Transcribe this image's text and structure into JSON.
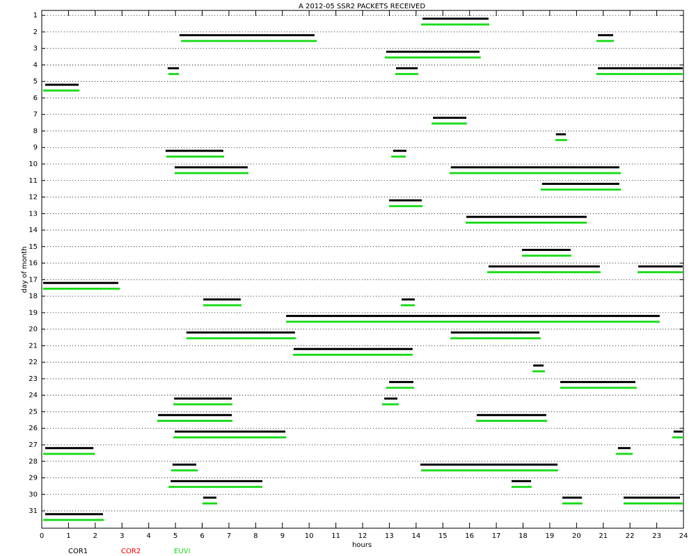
{
  "chart_data": {
    "type": "timeline",
    "title": "A  2012-05 SSR2 PACKETS RECEIVED",
    "x_label": "hours",
    "y_label": "day of month",
    "xlim": [
      0,
      24
    ],
    "xticks": [
      0,
      1,
      2,
      3,
      4,
      5,
      6,
      7,
      8,
      9,
      10,
      11,
      12,
      13,
      14,
      15,
      16,
      17,
      18,
      19,
      20,
      21,
      22,
      23,
      24
    ],
    "ylim": [
      0.7,
      32.05
    ],
    "yticks": [
      1,
      2,
      3,
      4,
      5,
      6,
      7,
      8,
      9,
      10,
      11,
      12,
      13,
      14,
      15,
      16,
      17,
      18,
      19,
      20,
      21,
      22,
      23,
      24,
      25,
      26,
      27,
      28,
      29,
      30,
      31
    ],
    "grid": true,
    "series": [
      {
        "name": "COR1",
        "color": "#000000",
        "segments": [
          [
            1,
            14.24,
            16.71
          ],
          [
            2,
            5.15,
            10.2
          ],
          [
            2,
            20.8,
            21.37
          ],
          [
            3,
            12.88,
            16.37
          ],
          [
            4,
            4.71,
            5.13
          ],
          [
            4,
            13.25,
            14.06
          ],
          [
            4,
            20.8,
            23.97
          ],
          [
            5,
            0.13,
            1.38
          ],
          [
            7,
            14.63,
            15.88
          ],
          [
            8,
            19.23,
            19.6
          ],
          [
            9,
            4.63,
            6.79
          ],
          [
            9,
            13.14,
            13.64
          ],
          [
            10,
            4.97,
            7.7
          ],
          [
            10,
            15.3,
            21.6
          ],
          [
            11,
            18.71,
            21.6
          ],
          [
            12,
            12.99,
            14.21
          ],
          [
            13,
            15.88,
            20.38
          ],
          [
            15,
            17.96,
            19.78
          ],
          [
            16,
            16.71,
            20.87
          ],
          [
            16,
            22.31,
            23.97
          ],
          [
            17,
            0.05,
            2.86
          ],
          [
            18,
            6.04,
            7.44
          ],
          [
            18,
            13.46,
            13.95
          ],
          [
            19,
            9.14,
            23.11
          ],
          [
            20,
            5.41,
            9.47
          ],
          [
            20,
            15.3,
            18.61
          ],
          [
            21,
            9.42,
            13.87
          ],
          [
            22,
            18.38,
            18.77
          ],
          [
            23,
            12.99,
            13.9
          ],
          [
            23,
            19.39,
            22.2
          ],
          [
            24,
            4.95,
            7.11
          ],
          [
            24,
            12.81,
            13.3
          ],
          [
            25,
            4.35,
            7.11
          ],
          [
            25,
            16.27,
            18.87
          ],
          [
            26,
            4.97,
            9.11
          ],
          [
            26,
            23.63,
            23.97
          ],
          [
            27,
            0.13,
            1.93
          ],
          [
            27,
            21.55,
            22.02
          ],
          [
            28,
            4.89,
            5.78
          ],
          [
            28,
            14.16,
            19.29
          ],
          [
            29,
            4.82,
            8.25
          ],
          [
            29,
            17.57,
            18.3
          ],
          [
            30,
            6.04,
            6.53
          ],
          [
            30,
            19.47,
            20.2
          ],
          [
            30,
            21.76,
            23.87
          ],
          [
            31,
            0.13,
            2.29
          ]
        ]
      },
      {
        "name": "COR2",
        "color": "#ff0000",
        "segments": []
      },
      {
        "name": "EUVI",
        "color": "#22dd22",
        "segments": [
          [
            1,
            14.19,
            16.74
          ],
          [
            2,
            5.21,
            10.28
          ],
          [
            2,
            20.74,
            21.4
          ],
          [
            3,
            12.83,
            16.42
          ],
          [
            4,
            4.74,
            5.13
          ],
          [
            4,
            13.22,
            14.08
          ],
          [
            4,
            20.74,
            23.97
          ],
          [
            5,
            0.05,
            1.41
          ],
          [
            7,
            14.58,
            15.9
          ],
          [
            8,
            19.21,
            19.65
          ],
          [
            9,
            4.66,
            6.82
          ],
          [
            9,
            13.07,
            13.61
          ],
          [
            10,
            4.97,
            7.73
          ],
          [
            10,
            15.25,
            21.66
          ],
          [
            11,
            18.66,
            21.66
          ],
          [
            12,
            12.99,
            14.24
          ],
          [
            13,
            15.85,
            20.38
          ],
          [
            15,
            17.96,
            19.81
          ],
          [
            16,
            16.66,
            20.9
          ],
          [
            16,
            22.28,
            23.97
          ],
          [
            17,
            0.05,
            2.92
          ],
          [
            18,
            6.04,
            7.47
          ],
          [
            18,
            13.43,
            13.95
          ],
          [
            19,
            9.14,
            23.11
          ],
          [
            20,
            5.41,
            9.5
          ],
          [
            20,
            15.28,
            18.66
          ],
          [
            21,
            9.4,
            13.87
          ],
          [
            22,
            18.35,
            18.82
          ],
          [
            23,
            12.88,
            13.92
          ],
          [
            23,
            19.39,
            22.25
          ],
          [
            24,
            4.92,
            7.13
          ],
          [
            24,
            12.73,
            13.35
          ],
          [
            25,
            4.32,
            7.13
          ],
          [
            25,
            16.24,
            18.9
          ],
          [
            26,
            4.92,
            9.14
          ],
          [
            26,
            23.58,
            23.97
          ],
          [
            27,
            0.05,
            1.98
          ],
          [
            27,
            21.47,
            22.1
          ],
          [
            28,
            4.84,
            5.83
          ],
          [
            28,
            14.19,
            19.31
          ],
          [
            29,
            4.74,
            8.25
          ],
          [
            29,
            17.57,
            18.32
          ],
          [
            30,
            6.01,
            6.56
          ],
          [
            30,
            19.47,
            20.22
          ],
          [
            30,
            21.76,
            23.97
          ],
          [
            31,
            0.05,
            2.32
          ]
        ]
      }
    ]
  }
}
